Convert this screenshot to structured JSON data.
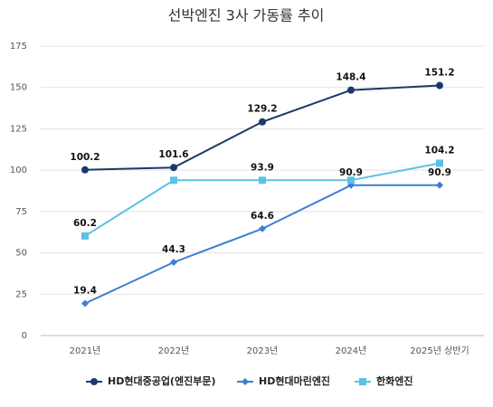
{
  "chart_data": {
    "type": "line",
    "title": "선박엔진 3사 가동률 추이",
    "categories": [
      "2021년",
      "2022년",
      "2023년",
      "2024년",
      "2025년 상반기"
    ],
    "ylim": [
      0,
      175
    ],
    "yticks": [
      0,
      25,
      50,
      75,
      100,
      125,
      150,
      175
    ],
    "grid": true,
    "series": [
      {
        "name": "HD현대중공업(엔진부문)",
        "color": "#1b3a6b",
        "marker": "circle",
        "values": [
          100.2,
          101.6,
          129.2,
          148.4,
          151.2
        ]
      },
      {
        "name": "HD현대마린엔진",
        "color": "#3b7fd4",
        "marker": "diamond",
        "values": [
          19.4,
          44.3,
          64.6,
          90.9,
          90.9
        ]
      },
      {
        "name": "한화엔진",
        "color": "#5bc2e4",
        "marker": "square",
        "values": [
          60.2,
          93.9,
          93.9,
          93.9,
          104.2
        ],
        "value_labels": [
          "60.2",
          null,
          "93.9",
          null,
          "104.2"
        ]
      }
    ]
  }
}
